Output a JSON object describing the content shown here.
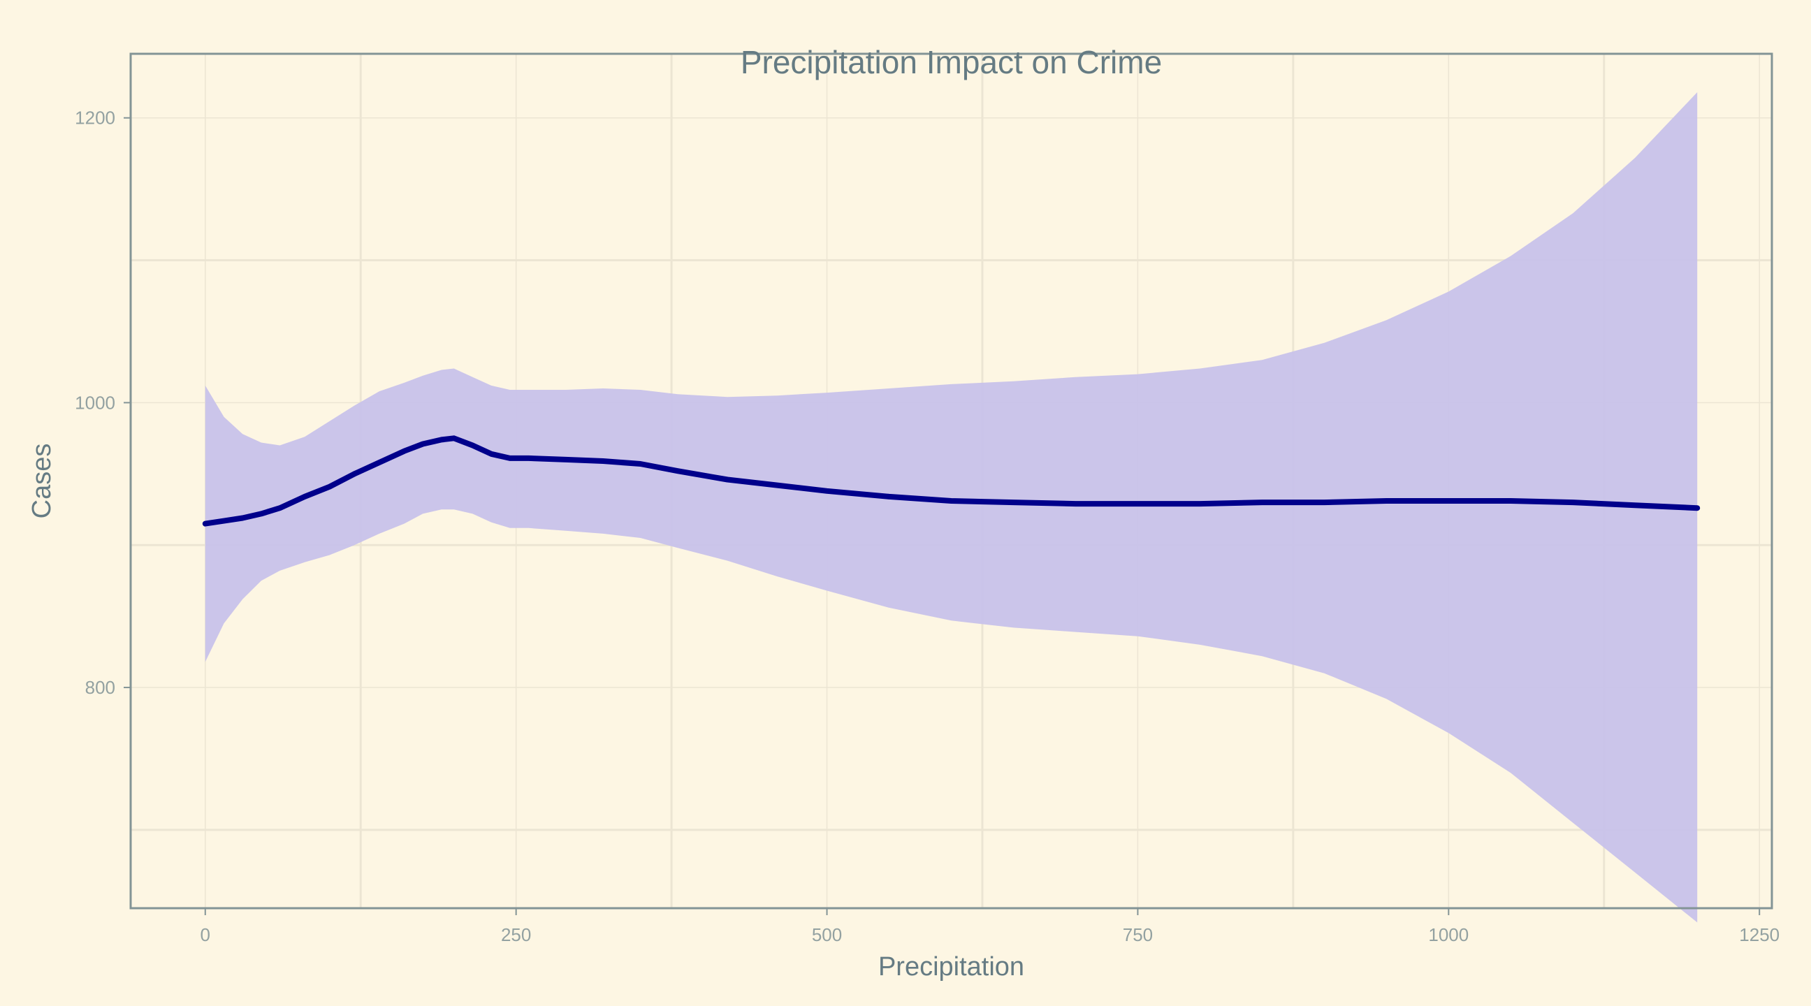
{
  "chart_data": {
    "type": "area",
    "title": "Precipitation Impact on Crime",
    "xlabel": "Precipitation",
    "ylabel": "Cases",
    "xlim": [
      -60,
      1260
    ],
    "ylim": [
      645,
      1245
    ],
    "x_ticks": [
      0,
      250,
      500,
      750,
      1000,
      1250
    ],
    "x_tick_labels": [
      "0",
      "250",
      "500",
      "750",
      "1000",
      "1250"
    ],
    "y_ticks": [
      800,
      1000,
      1200
    ],
    "y_tick_labels": [
      "800",
      "1000",
      "1200"
    ],
    "grid": true,
    "colors": {
      "background": "#fdf6e3",
      "band": "#c8c2ea",
      "line": "#00008b",
      "frame": "#839496",
      "grid": "#ece5d3",
      "text": "#657b83",
      "tick_text": "#93a1a1"
    },
    "series": [
      {
        "x": [
          0,
          15,
          30,
          45,
          60,
          80,
          100,
          120,
          140,
          160,
          175,
          190,
          200,
          215,
          230,
          245,
          260,
          290,
          320,
          350,
          380,
          420,
          460,
          500,
          550,
          600,
          650,
          700,
          750,
          800,
          850,
          900,
          950,
          1000,
          1050,
          1100,
          1150,
          1200
        ],
        "y": [
          915,
          917,
          919,
          922,
          926,
          934,
          941,
          950,
          958,
          966,
          971,
          974,
          975,
          970,
          964,
          961,
          961,
          960,
          959,
          957,
          952,
          946,
          942,
          938,
          934,
          931,
          930,
          929,
          929,
          929,
          930,
          930,
          931,
          931,
          931,
          930,
          928,
          926
        ],
        "lower": [
          818,
          845,
          862,
          875,
          882,
          888,
          893,
          900,
          908,
          915,
          922,
          925,
          925,
          922,
          916,
          912,
          912,
          910,
          908,
          905,
          898,
          889,
          878,
          868,
          856,
          847,
          842,
          839,
          836,
          830,
          822,
          810,
          792,
          768,
          740,
          705,
          670,
          635
        ],
        "upper": [
          1012,
          990,
          978,
          972,
          970,
          976,
          987,
          998,
          1008,
          1014,
          1019,
          1023,
          1024,
          1018,
          1012,
          1009,
          1009,
          1009,
          1010,
          1009,
          1006,
          1004,
          1005,
          1007,
          1010,
          1013,
          1015,
          1018,
          1020,
          1024,
          1030,
          1042,
          1058,
          1078,
          1103,
          1133,
          1172,
          1218
        ]
      }
    ]
  }
}
